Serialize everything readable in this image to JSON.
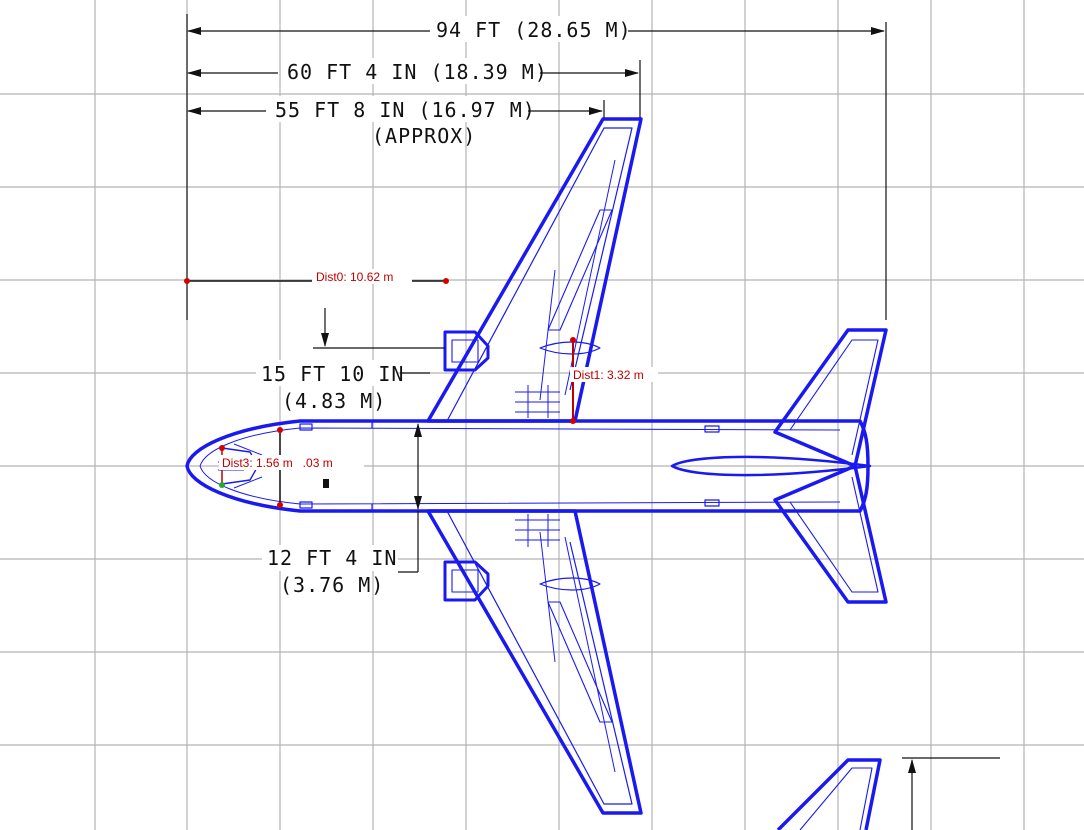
{
  "colors": {
    "grid": "#b4b4b4",
    "aircraft": "#1a1af0",
    "dimension": "#111111",
    "measure": "#c00000",
    "measure_point": "#d40000",
    "measure_point_alt": "#1fae1f"
  },
  "dimensions": {
    "overall_length": "94 FT (28.65 M)",
    "span_60": "60 FT 4 IN (18.39 M)",
    "span_55": "55 FT 8 IN (16.97 M)",
    "span_55_note": "(APPROX)",
    "nose_to_wing_ft": "15 FT 10 IN",
    "nose_to_wing_m": "(4.83 M)",
    "fuselage_ft": "12 FT 4 IN",
    "fuselage_m": "(3.76 M)"
  },
  "measurements": {
    "dist0": "Dist0: 10.62 m",
    "dist1": "Dist1: 3.32 m",
    "dist2": "Dist2: 3.03 m",
    "dist3": "Dist3: 1.56 m"
  }
}
